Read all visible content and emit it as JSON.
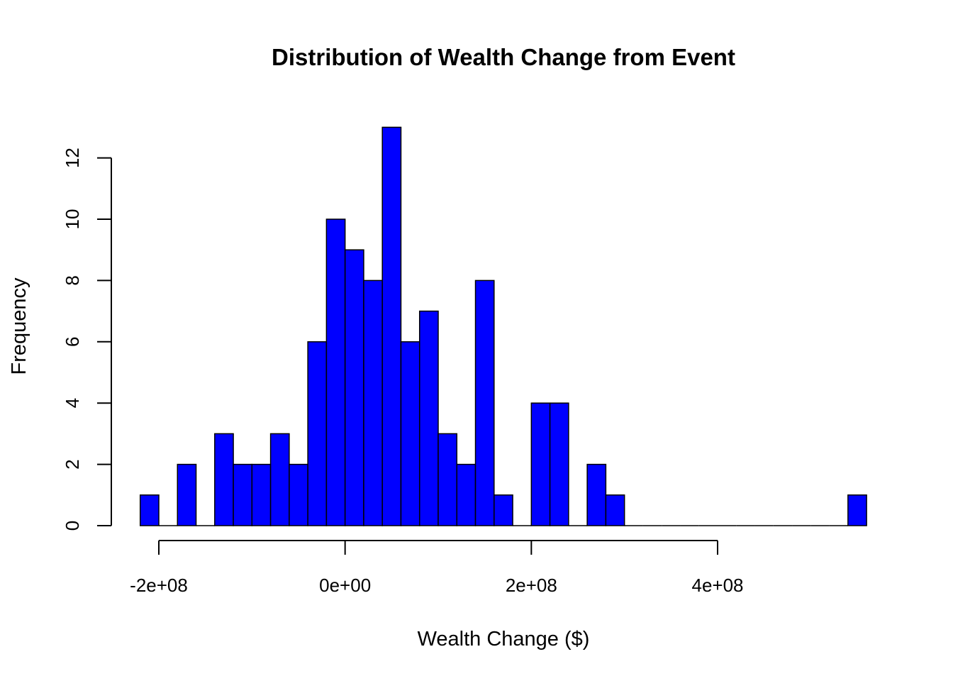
{
  "chart_data": {
    "type": "bar",
    "title": "Distribution of Wealth Change from Event",
    "xlabel": "Wealth Change ($)",
    "ylabel": "Frequency",
    "bin_width": 20000000,
    "bin_start": -220000000,
    "bin_end": 560000000,
    "values": [
      1,
      0,
      2,
      0,
      3,
      2,
      2,
      3,
      2,
      6,
      10,
      9,
      8,
      13,
      6,
      7,
      3,
      2,
      8,
      1,
      0,
      4,
      4,
      0,
      2,
      1,
      0,
      0,
      0,
      0,
      0,
      0,
      0,
      0,
      0,
      0,
      0,
      0,
      1
    ],
    "bar_color": "#0000FF",
    "xlim": [
      -220000000,
      560000000
    ],
    "ylim": [
      0,
      13
    ],
    "x_ticks": [
      -200000000,
      0,
      200000000,
      400000000
    ],
    "x_tick_labels": [
      "-2e+08",
      "0e+00",
      "2e+08",
      "4e+08"
    ],
    "y_ticks": [
      0,
      2,
      4,
      6,
      8,
      10,
      12
    ],
    "y_tick_labels": [
      "0",
      "2",
      "4",
      "6",
      "8",
      "10",
      "12"
    ],
    "grid": false,
    "legend": "none"
  }
}
